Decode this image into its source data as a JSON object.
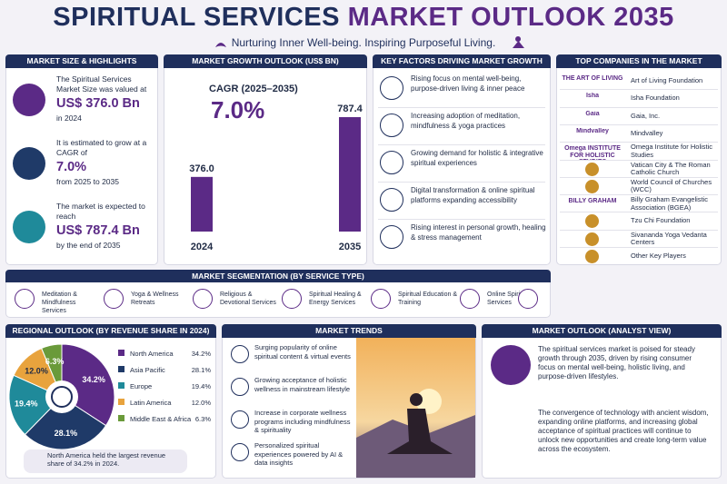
{
  "header": {
    "title_part1": "SPIRITUAL SERVICES",
    "title_part2": "MARKET OUTLOOK 2035",
    "subtitle": "Nurturing Inner Well-being. Inspiring Purposeful Living."
  },
  "highlights": {
    "title": "MARKET SIZE & HIGHLIGHTS",
    "items": [
      {
        "text": "The Spiritual Services Market Size was valued at",
        "value": "US$ 376.0 Bn",
        "note": "in 2024"
      },
      {
        "text": "It is estimated to grow at a CAGR of",
        "value": "7.0%",
        "note": "from 2025 to 2035"
      },
      {
        "text": "The market is expected to reach",
        "value": "US$ 787.4 Bn",
        "note": "by the end of 2035"
      }
    ]
  },
  "chart_data": [
    {
      "type": "bar",
      "title": "MARKET GROWTH OUTLOOK (US$ BN)",
      "subtitle": "CAGR (2025–2035)",
      "cagr": "7.0%",
      "categories": [
        "2024",
        "2035"
      ],
      "values": [
        376.0,
        787.4
      ],
      "value_labels": [
        "376.0",
        "787.4"
      ],
      "color": "#5b2a86"
    },
    {
      "type": "pie",
      "title": "REGIONAL OUTLOOK (BY REVENUE SHARE IN 2024)",
      "categories": [
        "North America",
        "Asia Pacific",
        "Europe",
        "Latin America",
        "Middle East & Africa"
      ],
      "values": [
        34.2,
        28.1,
        19.4,
        12.0,
        6.3
      ],
      "value_labels": [
        "34.2%",
        "28.1%",
        "19.4%",
        "12.0%",
        "6.3%"
      ],
      "colors": [
        "#5b2a86",
        "#1f3a68",
        "#1f8a9a",
        "#e8a33d",
        "#6a9a3a"
      ],
      "note": "North America held the largest revenue share of 34.2% in 2024."
    }
  ],
  "factors": {
    "title": "KEY FACTORS DRIVING MARKET GROWTH",
    "items": [
      "Rising focus on mental well-being, purpose-driven living & inner peace",
      "Increasing adoption of meditation, mindfulness & yoga practices",
      "Growing demand for holistic & integrative spiritual experiences",
      "Digital transformation & online spiritual platforms expanding accessibility",
      "Rising interest in personal growth, healing & stress management"
    ]
  },
  "companies": {
    "title": "TOP COMPANIES IN THE MARKET",
    "items": [
      {
        "logo": "THE ART OF LIVING",
        "name": "Art of Living Foundation"
      },
      {
        "logo": "Isha",
        "name": "Isha Foundation"
      },
      {
        "logo": "Gaia",
        "name": "Gaia, Inc."
      },
      {
        "logo": "Mindvalley",
        "name": "Mindvalley"
      },
      {
        "logo": "Omega INSTITUTE FOR HOLISTIC STUDIES",
        "name": "Omega Institute for Holistic Studies"
      },
      {
        "name": "Vatican City & The Roman Catholic Church"
      },
      {
        "name": "World Council of Churches (WCC)"
      },
      {
        "logo": "BILLY GRAHAM",
        "name": "Billy Graham Evangelistic Association (BGEA)"
      },
      {
        "name": "Tzu Chi Foundation"
      },
      {
        "name": "Sivananda Yoga Vedanta Centers"
      },
      {
        "name": "Other Key Players"
      }
    ]
  },
  "segmentation": {
    "title": "MARKET SEGMENTATION (BY SERVICE TYPE)",
    "items": [
      "Meditation & Mindfulness Services",
      "Yoga & Wellness Retreats",
      "Religious & Devotional Services",
      "Spiritual Healing & Energy Services",
      "Spiritual Education & Training",
      "Online Spiritual Services"
    ]
  },
  "trends": {
    "title": "MARKET TRENDS",
    "items": [
      "Surging popularity of online spiritual content & virtual events",
      "Growing acceptance of holistic wellness in mainstream lifestyle",
      "Increase in corporate wellness programs including mindfulness & spirituality",
      "Personalized spiritual experiences powered by AI & data insights"
    ]
  },
  "analyst": {
    "title": "MARKET OUTLOOK (ANALYST VIEW)",
    "paragraphs": [
      "The spiritual services market is poised for steady growth through 2035, driven by rising consumer focus on mental well-being, holistic living, and purpose-driven lifestyles.",
      "The convergence of technology with ancient wisdom, expanding online platforms, and increasing global acceptance of spiritual practices will continue to unlock new opportunities and create long-term value across the ecosystem."
    ]
  }
}
